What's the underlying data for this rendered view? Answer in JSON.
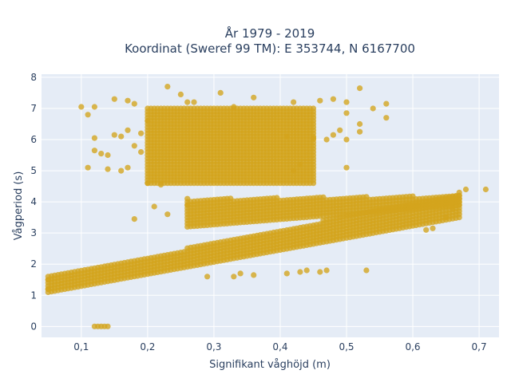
{
  "chart_data": {
    "type": "scatter",
    "title_lines": [
      "År 1979 - 2019",
      "Koordinat (Sweref 99 TM): E 353744, N 6167700"
    ],
    "xlabel": "Signifikant våghöjd (m)",
    "ylabel": "Vågperiod (s)",
    "xlim": [
      0.04,
      0.73
    ],
    "ylim": [
      -0.35,
      8.1
    ],
    "x_ticks": [
      0.1,
      0.2,
      0.3,
      0.4,
      0.5,
      0.6,
      0.7
    ],
    "x_tick_labels": [
      "0,1",
      "0,2",
      "0,3",
      "0,4",
      "0,5",
      "0,6",
      "0,7"
    ],
    "y_ticks": [
      0,
      1,
      2,
      3,
      4,
      5,
      6,
      7,
      8
    ],
    "y_tick_labels": [
      "0",
      "1",
      "2",
      "3",
      "4",
      "5",
      "6",
      "7",
      "8"
    ],
    "grid": true,
    "legend": "none",
    "colors": {
      "marker": "#d4a41c",
      "plot_bg": "#e5ecf6",
      "grid": "#ffffff",
      "text": "#2a3f5f"
    },
    "clusters": [
      {
        "name": "lower-band",
        "x_range": [
          0.05,
          0.67
        ],
        "x_step": 0.005,
        "y_low_at_start": 1.1,
        "y_low_at_end": 3.5,
        "y_high_at_start": 1.6,
        "y_high_at_end": 4.3
      },
      {
        "name": "middle-band",
        "x_range": [
          0.26,
          0.67
        ],
        "x_step": 0.005,
        "y_low_at_start": 3.2,
        "y_low_at_end": 3.9,
        "y_high_at_start": 4.1,
        "y_high_at_end": 4.2
      },
      {
        "name": "upper-cluster",
        "x_range": [
          0.2,
          0.45
        ],
        "x_step": 0.005,
        "y_low": 4.6,
        "y_high": 7.0
      }
    ],
    "points": [
      {
        "x": 0.12,
        "y": 0
      },
      {
        "x": 0.125,
        "y": 0
      },
      {
        "x": 0.13,
        "y": 0
      },
      {
        "x": 0.135,
        "y": 0
      },
      {
        "x": 0.14,
        "y": 0
      },
      {
        "x": 0.1,
        "y": 7.05
      },
      {
        "x": 0.12,
        "y": 7.05
      },
      {
        "x": 0.15,
        "y": 7.3
      },
      {
        "x": 0.17,
        "y": 7.25
      },
      {
        "x": 0.18,
        "y": 7.15
      },
      {
        "x": 0.23,
        "y": 7.7
      },
      {
        "x": 0.25,
        "y": 7.45
      },
      {
        "x": 0.26,
        "y": 7.2
      },
      {
        "x": 0.27,
        "y": 7.2
      },
      {
        "x": 0.31,
        "y": 7.5
      },
      {
        "x": 0.33,
        "y": 7.05
      },
      {
        "x": 0.36,
        "y": 7.35
      },
      {
        "x": 0.42,
        "y": 7.2
      },
      {
        "x": 0.46,
        "y": 7.25
      },
      {
        "x": 0.48,
        "y": 7.3
      },
      {
        "x": 0.5,
        "y": 7.2
      },
      {
        "x": 0.52,
        "y": 7.65
      },
      {
        "x": 0.54,
        "y": 7.0
      },
      {
        "x": 0.56,
        "y": 7.15
      },
      {
        "x": 0.56,
        "y": 6.7
      },
      {
        "x": 0.52,
        "y": 6.5
      },
      {
        "x": 0.52,
        "y": 6.25
      },
      {
        "x": 0.5,
        "y": 6.85
      },
      {
        "x": 0.5,
        "y": 6.0
      },
      {
        "x": 0.49,
        "y": 6.3
      },
      {
        "x": 0.48,
        "y": 6.15
      },
      {
        "x": 0.47,
        "y": 6.0
      },
      {
        "x": 0.5,
        "y": 5.1
      },
      {
        "x": 0.45,
        "y": 6.05
      },
      {
        "x": 0.41,
        "y": 6.1
      },
      {
        "x": 0.42,
        "y": 5.0
      },
      {
        "x": 0.43,
        "y": 5.2
      },
      {
        "x": 0.11,
        "y": 6.8
      },
      {
        "x": 0.12,
        "y": 6.05
      },
      {
        "x": 0.12,
        "y": 5.65
      },
      {
        "x": 0.13,
        "y": 5.55
      },
      {
        "x": 0.14,
        "y": 5.5
      },
      {
        "x": 0.15,
        "y": 6.15
      },
      {
        "x": 0.16,
        "y": 6.1
      },
      {
        "x": 0.17,
        "y": 6.3
      },
      {
        "x": 0.18,
        "y": 5.8
      },
      {
        "x": 0.19,
        "y": 5.6
      },
      {
        "x": 0.11,
        "y": 5.1
      },
      {
        "x": 0.14,
        "y": 5.05
      },
      {
        "x": 0.16,
        "y": 5.0
      },
      {
        "x": 0.17,
        "y": 5.1
      },
      {
        "x": 0.2,
        "y": 6.6
      },
      {
        "x": 0.19,
        "y": 6.2
      },
      {
        "x": 0.2,
        "y": 4.6
      },
      {
        "x": 0.22,
        "y": 4.55
      },
      {
        "x": 0.21,
        "y": 3.85
      },
      {
        "x": 0.23,
        "y": 3.6
      },
      {
        "x": 0.18,
        "y": 3.45
      },
      {
        "x": 0.26,
        "y": 3.9
      },
      {
        "x": 0.53,
        "y": 1.8
      },
      {
        "x": 0.47,
        "y": 1.8
      },
      {
        "x": 0.46,
        "y": 1.75
      },
      {
        "x": 0.44,
        "y": 1.8
      },
      {
        "x": 0.43,
        "y": 1.75
      },
      {
        "x": 0.41,
        "y": 1.7
      },
      {
        "x": 0.36,
        "y": 1.65
      },
      {
        "x": 0.34,
        "y": 1.7
      },
      {
        "x": 0.33,
        "y": 1.6
      },
      {
        "x": 0.29,
        "y": 1.6
      },
      {
        "x": 0.62,
        "y": 3.1
      },
      {
        "x": 0.63,
        "y": 3.15
      },
      {
        "x": 0.65,
        "y": 3.5
      },
      {
        "x": 0.66,
        "y": 3.8
      },
      {
        "x": 0.68,
        "y": 4.4
      },
      {
        "x": 0.71,
        "y": 4.4
      },
      {
        "x": 0.05,
        "y": 1.2
      },
      {
        "x": 0.05,
        "y": 1.5
      }
    ]
  }
}
